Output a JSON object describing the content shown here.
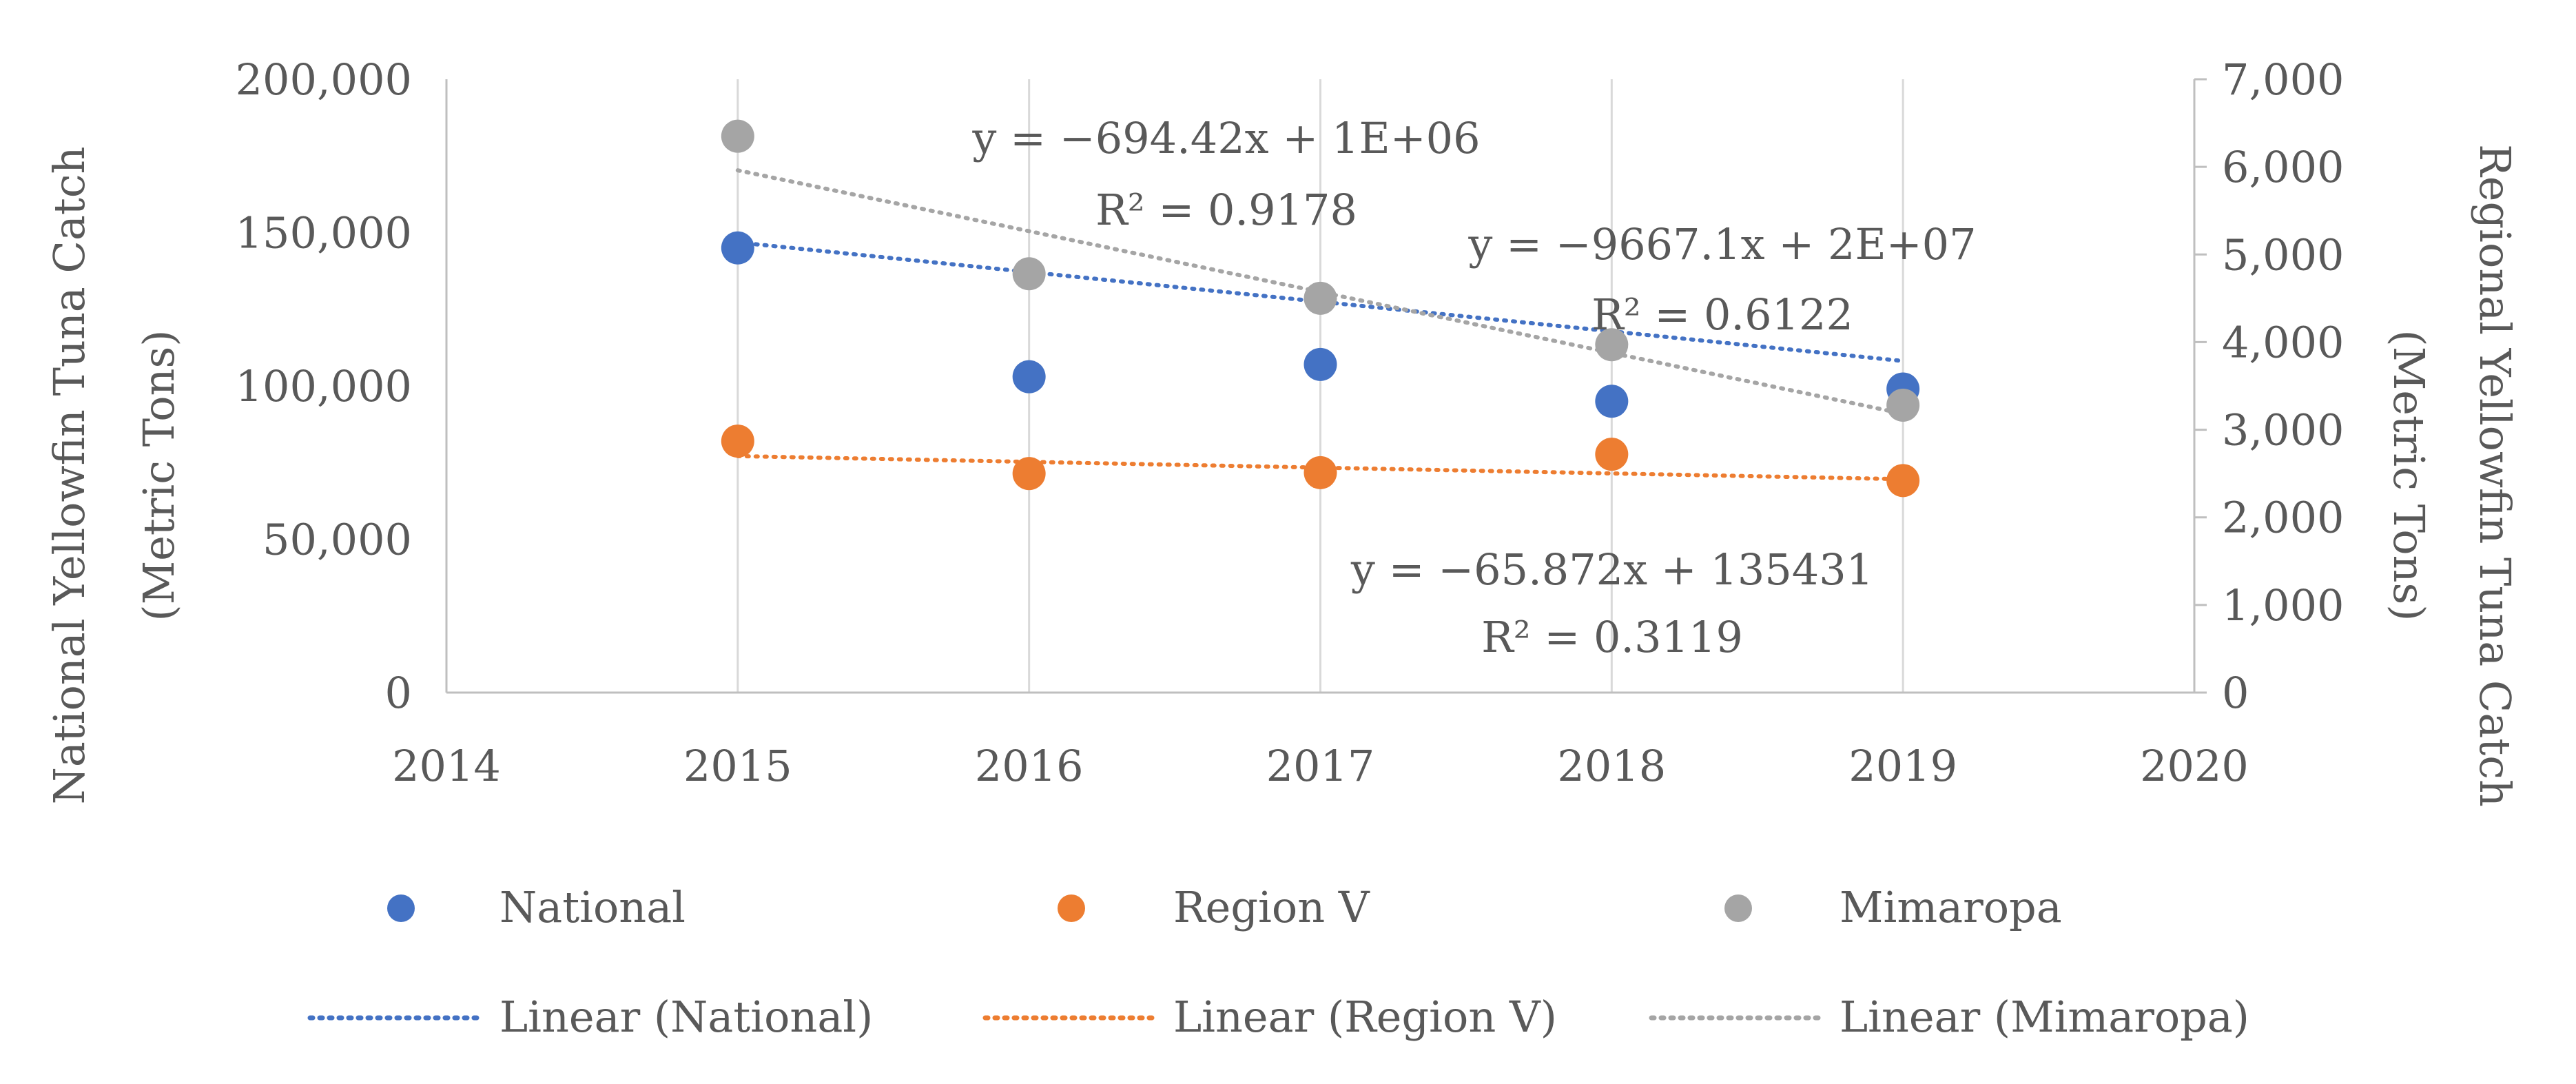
{
  "chart_data": {
    "type": "scatter",
    "x_axis": {
      "min": 2014,
      "max": 2020,
      "ticks": [
        2014,
        2015,
        2016,
        2017,
        2018,
        2019,
        2020
      ],
      "tick_labels": [
        "2014",
        "2015",
        "2016",
        "2017",
        "2018",
        "2019",
        "2020"
      ]
    },
    "y_axis_left": {
      "label_line1": "National Yellowfin Tuna Catch",
      "label_line2": "(Metric Tons)",
      "min": 0,
      "max": 200000,
      "ticks": [
        0,
        50000,
        100000,
        150000,
        200000
      ],
      "tick_labels": [
        "0",
        "50,000",
        "100,000",
        "150,000",
        "200,000"
      ]
    },
    "y_axis_right": {
      "label_line1": "Regional Yellowfin Tuna Catch",
      "label_line2": "(Metric Tons)",
      "min": 0,
      "max": 7000,
      "ticks": [
        0,
        1000,
        2000,
        3000,
        4000,
        5000,
        6000,
        7000
      ],
      "tick_labels": [
        "0",
        "1,000",
        "2,000",
        "3,000",
        "4,000",
        "5,000",
        "6,000",
        "7,000"
      ]
    },
    "grid": "vertical",
    "series": [
      {
        "name": "National",
        "axis": "left",
        "color": "#4472C4",
        "x": [
          2015,
          2016,
          2017,
          2018,
          2019
        ],
        "y": [
          145000,
          103000,
          107000,
          95000,
          99000
        ],
        "trendline": {
          "name": "Linear (National)",
          "slope": -9667.1,
          "intercept": 19626000,
          "equation": "y = −9667.1x + 2E+07",
          "r2": "R² = 0.6122"
        }
      },
      {
        "name": "Region V",
        "axis": "right",
        "color": "#ED7D31",
        "x": [
          2015,
          2016,
          2017,
          2018,
          2019
        ],
        "y": [
          2870,
          2500,
          2510,
          2720,
          2420
        ],
        "trendline": {
          "name": "Linear (Region V)",
          "slope": -65.872,
          "intercept": 135431,
          "equation": "y = −65.872x + 135431",
          "r2": "R² = 0.3119"
        }
      },
      {
        "name": "Mimaropa",
        "axis": "right",
        "color": "#A5A5A5",
        "x": [
          2015,
          2016,
          2017,
          2018,
          2019
        ],
        "y": [
          6350,
          4780,
          4500,
          3970,
          3280
        ],
        "trendline": {
          "name": "Linear (Mimaropa)",
          "slope": -694.42,
          "intercept": 1405217,
          "equation": "y = −694.42x + 1E+06",
          "r2": "R² = 0.9178"
        }
      }
    ],
    "legend": {
      "placement": "bottom",
      "marker_entries": [
        "National",
        "Region V",
        "Mimaropa"
      ],
      "line_entries": [
        "Linear (National)",
        "Linear (Region V)",
        "Linear (Mimaropa)"
      ]
    }
  }
}
